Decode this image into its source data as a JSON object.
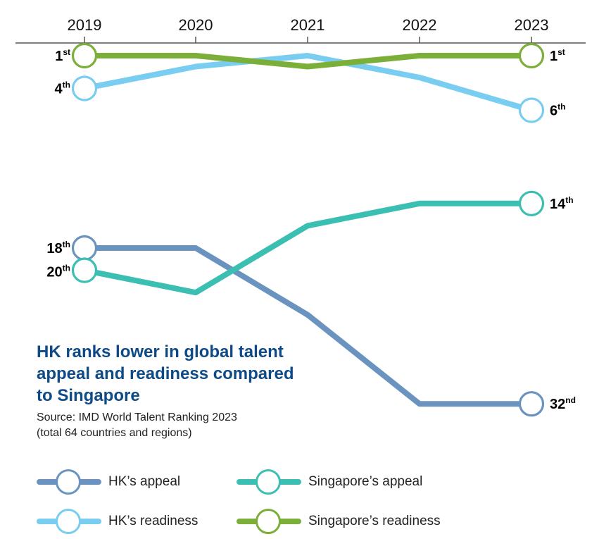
{
  "chart_data": {
    "type": "line",
    "x": [
      "2019",
      "2020",
      "2021",
      "2022",
      "2023"
    ],
    "y_axis": "rank (1 = best)",
    "series": [
      {
        "name": "HK's appeal",
        "color": "#6b93c0",
        "values": [
          18,
          18,
          24,
          32,
          32
        ]
      },
      {
        "name": "Singapore's appeal",
        "color": "#3bbfb2",
        "values": [
          20,
          22,
          16,
          14,
          14
        ]
      },
      {
        "name": "HK's readiness",
        "color": "#78cdf0",
        "values": [
          4,
          2,
          1,
          3,
          6
        ]
      },
      {
        "name": "Singapore's readiness",
        "color": "#7caf3a",
        "values": [
          1,
          1,
          2,
          1,
          1
        ]
      }
    ],
    "start_labels": [
      {
        "series": "Singapore's readiness",
        "num": "1",
        "sup": "st"
      },
      {
        "series": "HK's readiness",
        "num": "4",
        "sup": "th"
      },
      {
        "series": "HK's appeal",
        "num": "18",
        "sup": "th"
      },
      {
        "series": "Singapore's appeal",
        "num": "20",
        "sup": "th"
      }
    ],
    "end_labels": [
      {
        "series": "Singapore's readiness",
        "num": "1",
        "sup": "st"
      },
      {
        "series": "HK's readiness",
        "num": "6",
        "sup": "th"
      },
      {
        "series": "Singapore's appeal",
        "num": "14",
        "sup": "th"
      },
      {
        "series": "HK's appeal",
        "num": "32",
        "sup": "nd"
      }
    ]
  },
  "title": "HK ranks lower in global talent appeal and readiness compared to Singapore",
  "source_line1": "Source: IMD World Talent Ranking 2023",
  "source_line2": "(total 64 countries and regions)",
  "legend": [
    {
      "label": "HK’s appeal",
      "color": "#6b93c0"
    },
    {
      "label": "Singapore’s appeal",
      "color": "#3bbfb2"
    },
    {
      "label": "HK’s readiness",
      "color": "#78cdf0"
    },
    {
      "label": "Singapore’s readiness",
      "color": "#7caf3a"
    }
  ]
}
